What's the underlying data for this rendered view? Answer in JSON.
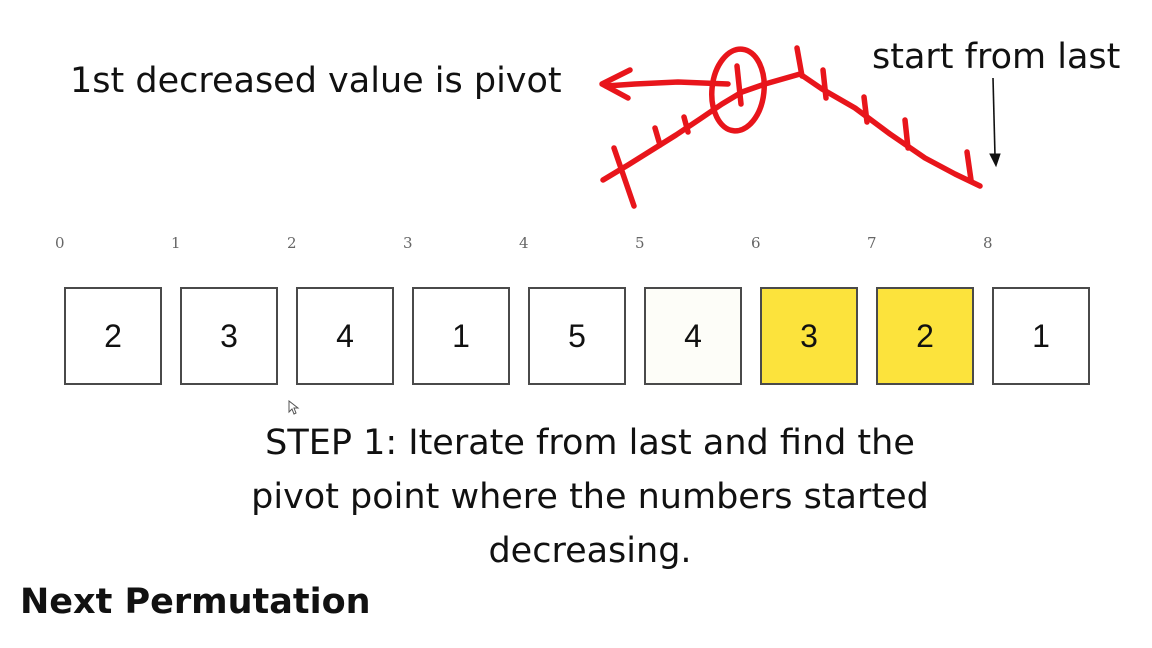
{
  "title": "Next Permutation",
  "annotations": {
    "pivot_label": "1st decreased value is pivot",
    "start_label": "start from last"
  },
  "array": {
    "indices": [
      "0",
      "1",
      "2",
      "3",
      "4",
      "5",
      "6",
      "7",
      "8"
    ],
    "values": [
      "2",
      "3",
      "4",
      "1",
      "5",
      "4",
      "3",
      "2",
      "1"
    ],
    "highlighted_indices": [
      6,
      7
    ],
    "highlight_color": "#fce33c"
  },
  "step": {
    "lines": [
      "STEP 1: Iterate from last and find the",
      "pivot point where the numbers started",
      "decreasing."
    ]
  },
  "colors": {
    "ink": "#e8151b",
    "cell_border": "#4a4a4a"
  }
}
